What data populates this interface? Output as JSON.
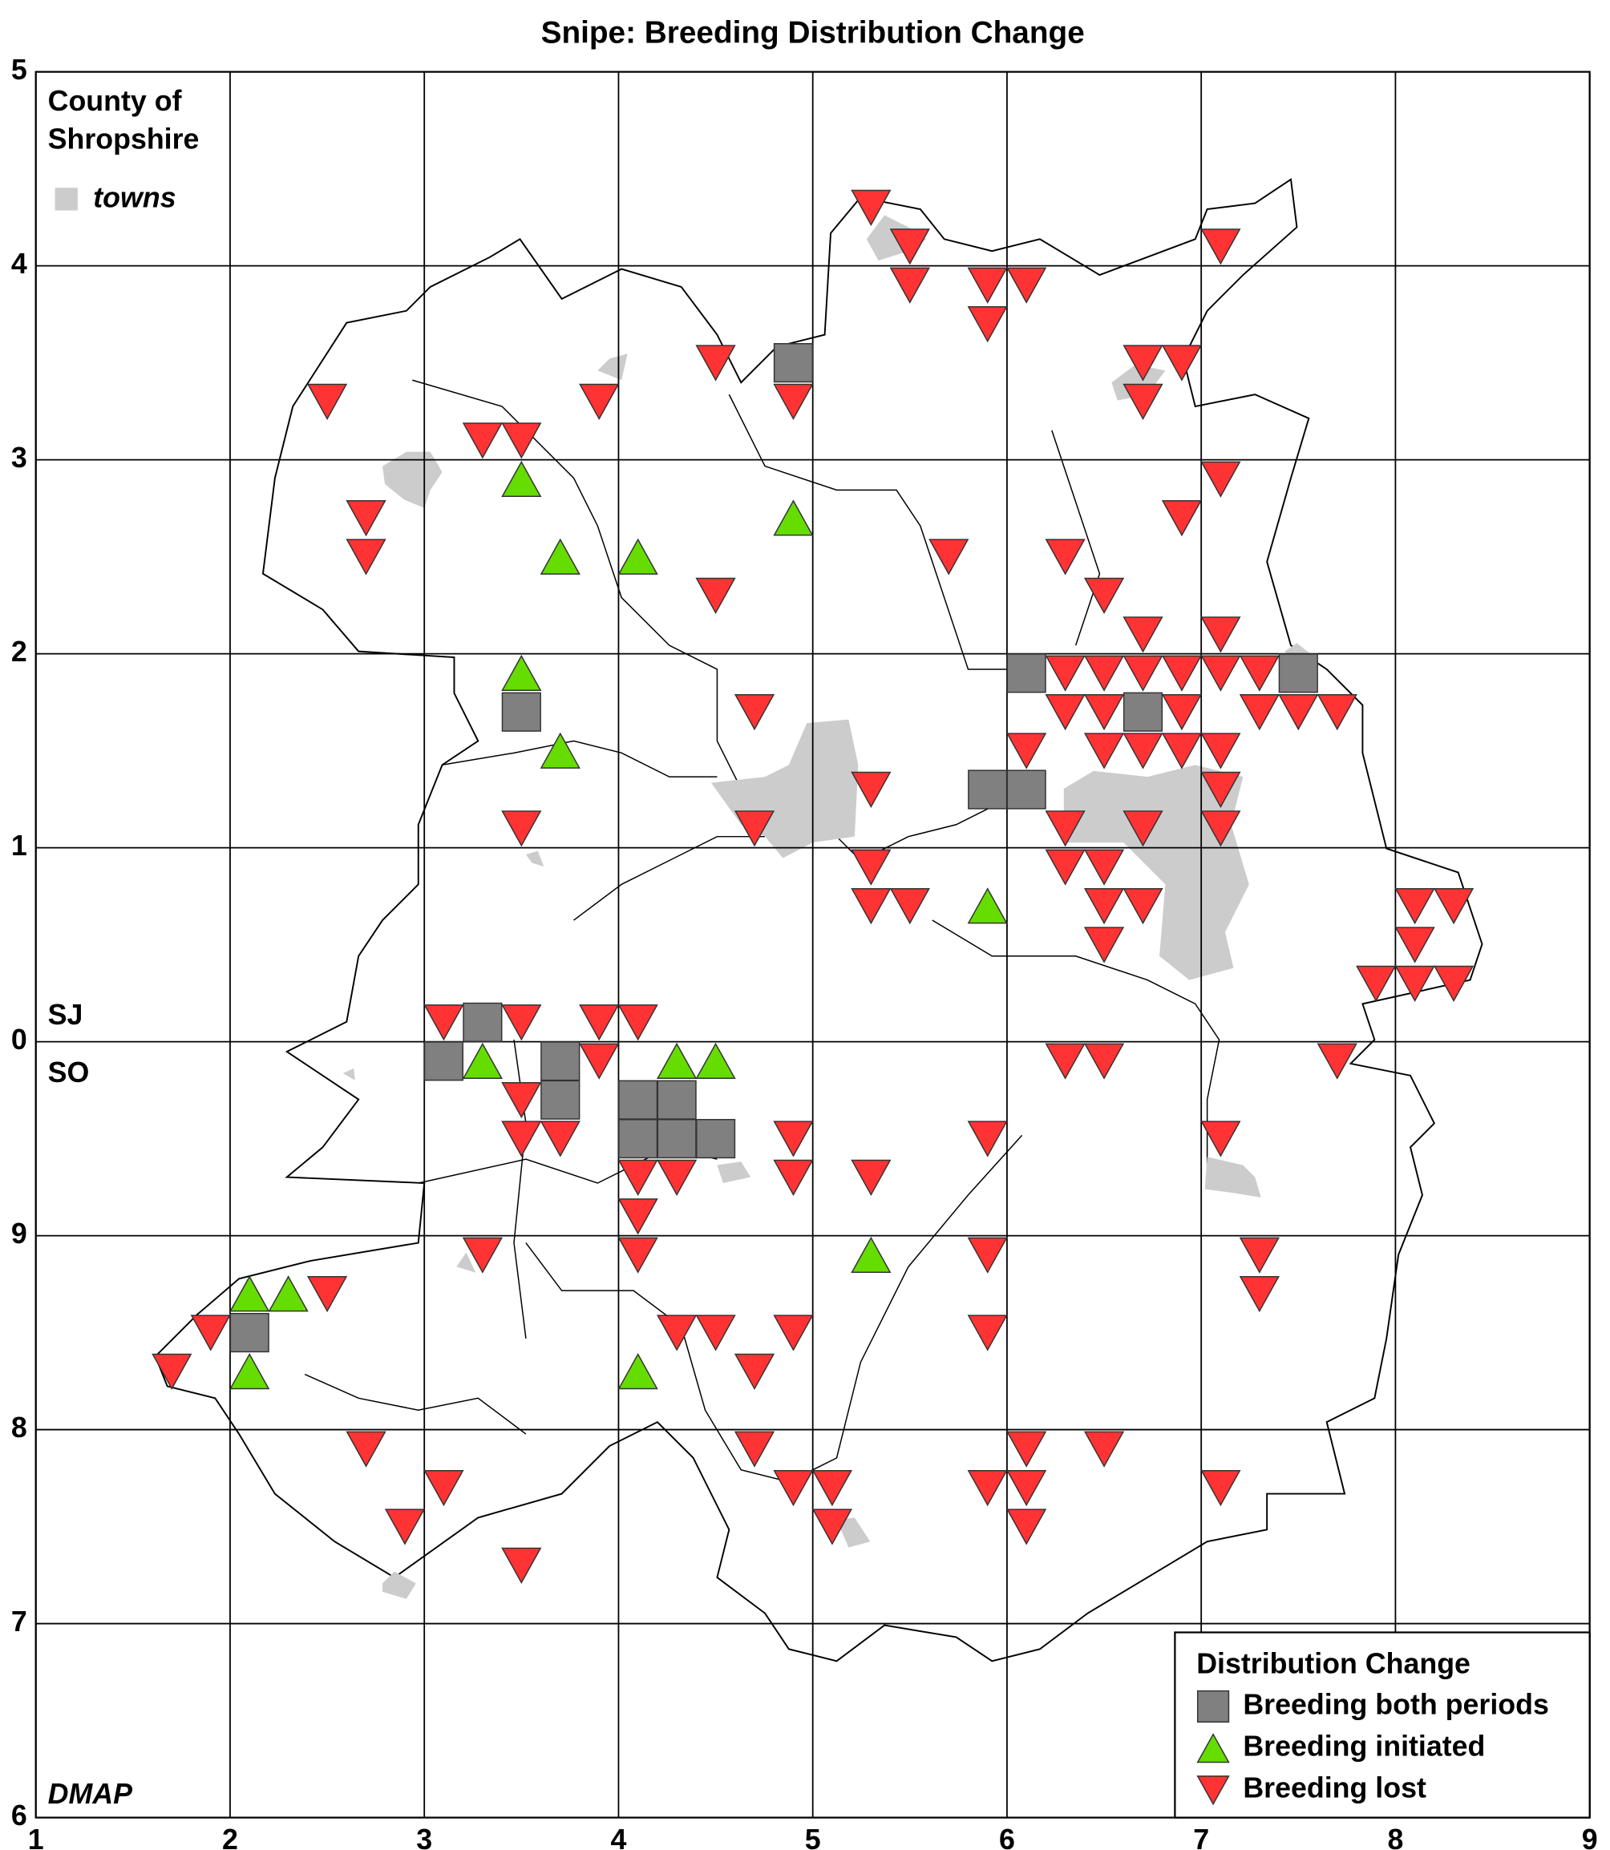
{
  "chart_data": {
    "type": "scatter",
    "title": "Snipe: Breeding Distribution Change",
    "county_label": [
      "County of",
      "Shropshire"
    ],
    "towns_label": "towns",
    "towns_color": "#cccccc",
    "grid_labels": [
      "SJ",
      "SO"
    ],
    "credit": "DMAP",
    "legend_title": "Distribution Change",
    "legend": "bottom-right",
    "grid": true,
    "xlim": [
      1,
      9
    ],
    "xticks": [
      1,
      2,
      3,
      4,
      5,
      6,
      7,
      8,
      9
    ],
    "ylim": [
      -4,
      5
    ],
    "yticks": [
      5,
      4,
      3,
      2,
      1,
      0,
      {
        "value": -1,
        "label": "9"
      },
      {
        "value": -2,
        "label": "8"
      },
      {
        "value": -3,
        "label": "7"
      },
      {
        "value": -4,
        "label": "6"
      }
    ],
    "series": [
      {
        "name": "Breeding both periods",
        "color": "#808080",
        "marker": "square",
        "x": [
          4.9,
          3.5,
          6.1,
          7.5,
          6.7,
          5.9,
          6.1,
          3.3,
          3.1,
          3.7,
          3.7,
          4.1,
          4.3,
          4.1,
          4.3,
          4.5,
          2.1
        ],
        "y": [
          3.5,
          1.7,
          1.9,
          1.9,
          1.7,
          1.3,
          1.3,
          0.1,
          -0.1,
          -0.1,
          -0.3,
          -0.3,
          -0.3,
          -0.5,
          -0.5,
          -0.5,
          -1.5
        ]
      },
      {
        "name": "Breeding initiated",
        "color": "#66dd00",
        "marker": "triangle-up",
        "x": [
          3.5,
          4.9,
          3.7,
          4.1,
          3.5,
          3.7,
          5.9,
          3.3,
          4.3,
          4.5,
          5.3,
          2.1,
          2.3,
          2.1,
          4.1
        ],
        "y": [
          2.9,
          2.7,
          2.5,
          2.5,
          1.9,
          1.5,
          0.7,
          -0.1,
          -0.1,
          -0.1,
          -1.1,
          -1.3,
          -1.3,
          -1.7,
          -1.7
        ]
      },
      {
        "name": "Breeding lost",
        "color": "#ff3333",
        "marker": "triangle-down",
        "x": [
          5.3,
          5.5,
          7.1,
          5.5,
          5.9,
          6.1,
          5.9,
          4.5,
          6.7,
          6.9,
          2.5,
          3.9,
          4.9,
          6.7,
          3.3,
          3.5,
          7.1,
          2.7,
          6.9,
          2.7,
          5.7,
          6.3,
          4.5,
          6.5,
          6.7,
          7.1,
          6.3,
          6.5,
          6.7,
          6.9,
          7.1,
          7.3,
          4.7,
          6.3,
          6.5,
          6.9,
          7.3,
          7.5,
          7.7,
          6.1,
          6.5,
          6.7,
          6.9,
          7.1,
          5.3,
          7.1,
          3.5,
          4.7,
          6.3,
          6.7,
          7.1,
          5.3,
          6.3,
          6.5,
          5.3,
          5.5,
          6.5,
          6.7,
          8.1,
          8.3,
          6.5,
          8.1,
          7.9,
          8.1,
          8.3,
          3.1,
          3.5,
          3.9,
          4.1,
          3.9,
          6.3,
          6.5,
          7.7,
          3.5,
          3.5,
          3.7,
          4.9,
          5.9,
          7.1,
          4.1,
          4.3,
          4.9,
          5.3,
          4.1,
          3.3,
          4.1,
          5.9,
          7.3,
          2.5,
          7.3,
          1.9,
          4.3,
          4.5,
          4.9,
          5.9,
          1.7,
          4.7,
          2.7,
          4.7,
          6.1,
          6.5,
          3.1,
          4.9,
          5.1,
          5.9,
          6.1,
          7.1,
          2.9,
          5.1,
          6.1,
          3.5
        ],
        "y": [
          4.3,
          4.1,
          4.1,
          3.9,
          3.9,
          3.9,
          3.7,
          3.5,
          3.5,
          3.5,
          3.3,
          3.3,
          3.3,
          3.3,
          3.1,
          3.1,
          2.9,
          2.7,
          2.7,
          2.5,
          2.5,
          2.5,
          2.3,
          2.3,
          2.1,
          2.1,
          1.9,
          1.9,
          1.9,
          1.9,
          1.9,
          1.9,
          1.7,
          1.7,
          1.7,
          1.7,
          1.7,
          1.7,
          1.7,
          1.5,
          1.5,
          1.5,
          1.5,
          1.5,
          1.3,
          1.3,
          1.1,
          1.1,
          1.1,
          1.1,
          1.1,
          0.9,
          0.9,
          0.9,
          0.7,
          0.7,
          0.7,
          0.7,
          0.7,
          0.7,
          0.5,
          0.5,
          0.3,
          0.3,
          0.3,
          0.1,
          0.1,
          0.1,
          0.1,
          -0.1,
          -0.1,
          -0.1,
          -0.1,
          -0.3,
          -0.5,
          -0.5,
          -0.5,
          -0.5,
          -0.5,
          -0.7,
          -0.7,
          -0.7,
          -0.7,
          -0.9,
          -1.1,
          -1.1,
          -1.1,
          -1.1,
          -1.3,
          -1.3,
          -1.5,
          -1.5,
          -1.5,
          -1.5,
          -1.5,
          -1.7,
          -1.7,
          -2.1,
          -2.1,
          -2.1,
          -2.1,
          -2.3,
          -2.3,
          -2.3,
          -2.3,
          -2.3,
          -2.3,
          -2.5,
          -2.5,
          -2.5,
          -2.7
        ]
      }
    ]
  }
}
